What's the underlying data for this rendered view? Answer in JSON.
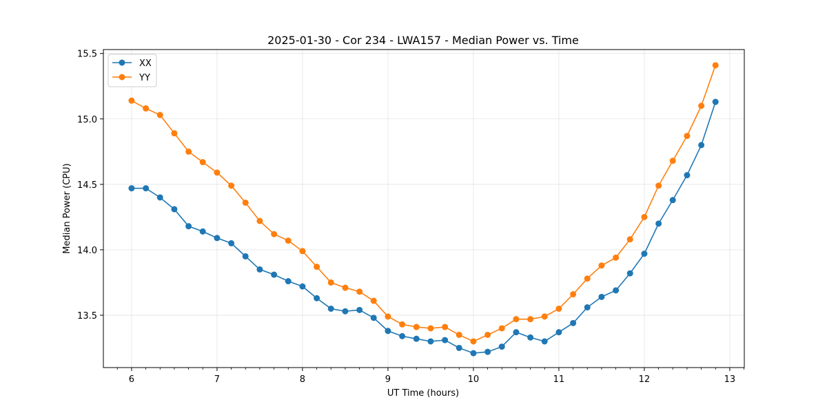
{
  "chart_data": {
    "type": "line",
    "title": "2025-01-30 - Cor 234 - LWA157 - Median Power vs. Time",
    "xlabel": "UT Time (hours)",
    "ylabel": "Median Power (CPU)",
    "xlim": [
      5.67,
      13.17
    ],
    "ylim": [
      13.1,
      15.53
    ],
    "xticks": [
      6,
      7,
      8,
      9,
      10,
      11,
      12,
      13
    ],
    "yticks": [
      13.5,
      14.0,
      14.5,
      15.0,
      15.5
    ],
    "grid": true,
    "legend_position": "top-left",
    "x": [
      6.0,
      6.167,
      6.333,
      6.5,
      6.667,
      6.833,
      7.0,
      7.167,
      7.333,
      7.5,
      7.667,
      7.833,
      8.0,
      8.167,
      8.333,
      8.5,
      8.667,
      8.833,
      9.0,
      9.167,
      9.333,
      9.5,
      9.667,
      9.833,
      10.0,
      10.167,
      10.333,
      10.5,
      10.667,
      10.833,
      11.0,
      11.167,
      11.333,
      11.5,
      11.667,
      11.833,
      12.0,
      12.167,
      12.333,
      12.5,
      12.667,
      12.833
    ],
    "series": [
      {
        "name": "XX",
        "color": "#1f77b4",
        "values": [
          14.47,
          14.47,
          14.4,
          14.31,
          14.18,
          14.14,
          14.09,
          14.05,
          13.95,
          13.85,
          13.81,
          13.76,
          13.72,
          13.63,
          13.55,
          13.53,
          13.54,
          13.48,
          13.38,
          13.34,
          13.32,
          13.3,
          13.31,
          13.25,
          13.21,
          13.22,
          13.26,
          13.37,
          13.33,
          13.3,
          13.37,
          13.44,
          13.56,
          13.64,
          13.69,
          13.82,
          13.97,
          14.2,
          14.38,
          14.57,
          14.8,
          15.13
        ]
      },
      {
        "name": "YY",
        "color": "#ff7f0e",
        "values": [
          15.14,
          15.08,
          15.03,
          14.89,
          14.75,
          14.67,
          14.59,
          14.49,
          14.36,
          14.22,
          14.12,
          14.07,
          13.99,
          13.87,
          13.75,
          13.71,
          13.68,
          13.61,
          13.49,
          13.43,
          13.41,
          13.4,
          13.41,
          13.35,
          13.3,
          13.35,
          13.4,
          13.47,
          13.47,
          13.49,
          13.55,
          13.66,
          13.78,
          13.88,
          13.94,
          14.08,
          14.25,
          14.49,
          14.68,
          14.87,
          15.1,
          15.41
        ]
      }
    ]
  }
}
